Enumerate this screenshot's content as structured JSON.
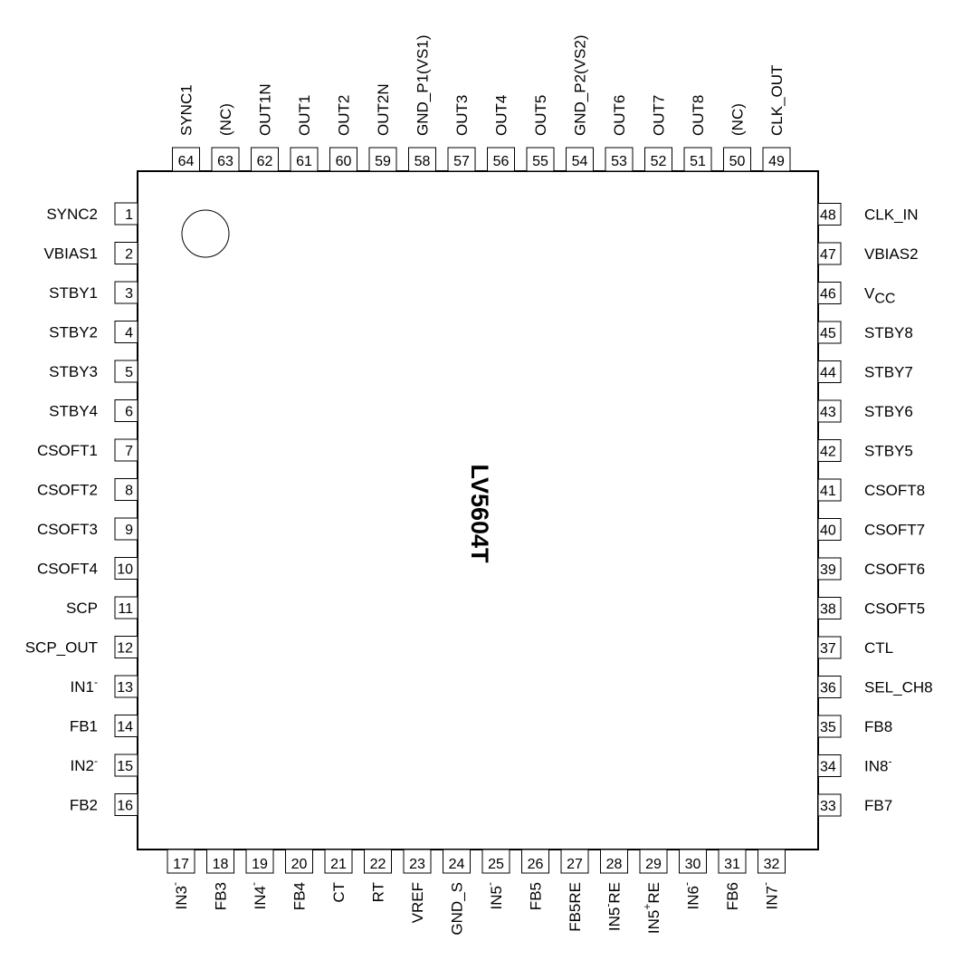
{
  "chip": {
    "name": "LV5604T"
  },
  "pins": {
    "left": [
      {
        "num": "1",
        "name": "SYNC2"
      },
      {
        "num": "2",
        "name": "VBIAS1"
      },
      {
        "num": "3",
        "name": "STBY1"
      },
      {
        "num": "4",
        "name": "STBY2"
      },
      {
        "num": "5",
        "name": "STBY3"
      },
      {
        "num": "6",
        "name": "STBY4"
      },
      {
        "num": "7",
        "name": "CSOFT1"
      },
      {
        "num": "8",
        "name": "CSOFT2"
      },
      {
        "num": "9",
        "name": "CSOFT3"
      },
      {
        "num": "10",
        "name": "CSOFT4"
      },
      {
        "num": "11",
        "name": "SCP"
      },
      {
        "num": "12",
        "name": "SCP_OUT"
      },
      {
        "num": "13",
        "name": "IN1",
        "sup": "-"
      },
      {
        "num": "14",
        "name": "FB1"
      },
      {
        "num": "15",
        "name": "IN2",
        "sup": "-"
      },
      {
        "num": "16",
        "name": "FB2"
      }
    ],
    "bottom": [
      {
        "num": "17",
        "name": "IN3",
        "sup": "-"
      },
      {
        "num": "18",
        "name": "FB3"
      },
      {
        "num": "19",
        "name": "IN4",
        "sup": "-"
      },
      {
        "num": "20",
        "name": "FB4"
      },
      {
        "num": "21",
        "name": "CT"
      },
      {
        "num": "22",
        "name": "RT"
      },
      {
        "num": "23",
        "name": "VREF"
      },
      {
        "num": "24",
        "name": "GND_S"
      },
      {
        "num": "25",
        "name": "IN5",
        "sup": "-"
      },
      {
        "num": "26",
        "name": "FB5"
      },
      {
        "num": "27",
        "name": "FB5RE"
      },
      {
        "num": "28",
        "name": "IN5",
        "sup": "-",
        "after": "RE"
      },
      {
        "num": "29",
        "name": "IN5",
        "sup": "+",
        "after": "RE"
      },
      {
        "num": "30",
        "name": "IN6",
        "sup": "-"
      },
      {
        "num": "31",
        "name": "FB6"
      },
      {
        "num": "32",
        "name": "IN7",
        "sup": "-"
      }
    ],
    "right": [
      {
        "num": "33",
        "name": "FB7"
      },
      {
        "num": "34",
        "name": "IN8",
        "sup": "-"
      },
      {
        "num": "35",
        "name": "FB8"
      },
      {
        "num": "36",
        "name": "SEL_CH8"
      },
      {
        "num": "37",
        "name": "CTL"
      },
      {
        "num": "38",
        "name": "CSOFT5"
      },
      {
        "num": "39",
        "name": "CSOFT6"
      },
      {
        "num": "40",
        "name": "CSOFT7"
      },
      {
        "num": "41",
        "name": "CSOFT8"
      },
      {
        "num": "42",
        "name": "STBY5"
      },
      {
        "num": "43",
        "name": "STBY6"
      },
      {
        "num": "44",
        "name": "STBY7"
      },
      {
        "num": "45",
        "name": "STBY8"
      },
      {
        "num": "46",
        "name": "V",
        "sub": "CC"
      },
      {
        "num": "47",
        "name": "VBIAS2"
      },
      {
        "num": "48",
        "name": "CLK_IN"
      }
    ],
    "top": [
      {
        "num": "49",
        "name": "CLK_OUT"
      },
      {
        "num": "50",
        "name": "(NC)"
      },
      {
        "num": "51",
        "name": "OUT8"
      },
      {
        "num": "52",
        "name": "OUT7"
      },
      {
        "num": "53",
        "name": "OUT6"
      },
      {
        "num": "54",
        "name": "GND_P2(VS2)"
      },
      {
        "num": "55",
        "name": "OUT5"
      },
      {
        "num": "56",
        "name": "OUT4"
      },
      {
        "num": "57",
        "name": "OUT3"
      },
      {
        "num": "58",
        "name": "GND_P1(VS1)"
      },
      {
        "num": "59",
        "name": "OUT2N"
      },
      {
        "num": "60",
        "name": "OUT2"
      },
      {
        "num": "61",
        "name": "OUT1"
      },
      {
        "num": "62",
        "name": "OUT1N"
      },
      {
        "num": "63",
        "name": "(NC)"
      },
      {
        "num": "64",
        "name": "SYNC1"
      }
    ]
  }
}
